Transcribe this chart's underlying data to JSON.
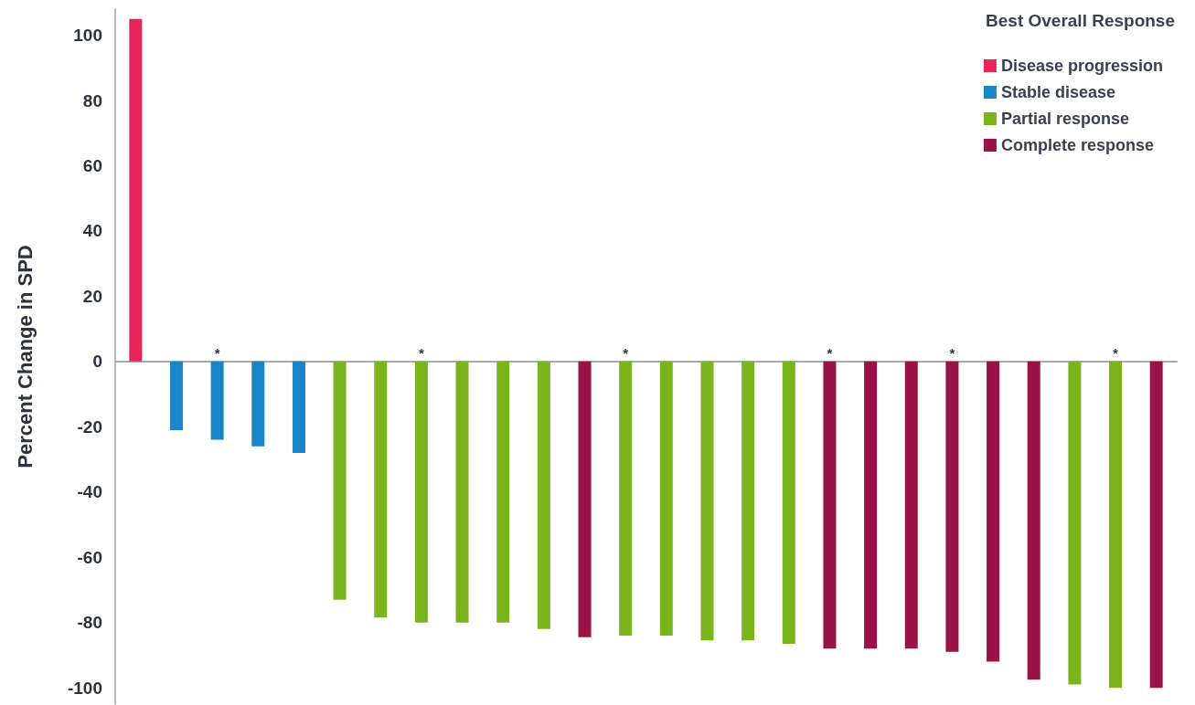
{
  "chart_data": {
    "type": "bar",
    "ylabel": "Percent Change in SPD",
    "legend_title": "Best Overall Response",
    "legend": "top right",
    "tick_labels": "y",
    "categories": [
      null,
      null,
      null,
      null,
      null,
      null,
      null,
      null,
      null,
      null,
      null,
      null,
      null,
      null,
      null,
      null,
      null,
      null,
      null,
      null,
      null,
      null,
      null,
      null,
      null,
      null
    ],
    "ylim": [
      -105,
      108
    ],
    "yticks": [
      -100,
      -80,
      -60,
      -40,
      -20,
      0,
      20,
      40,
      60,
      80,
      100
    ],
    "series": [
      {
        "name": "Disease progression",
        "color": "#e8245a",
        "values": [
          105,
          null,
          null,
          null,
          null,
          null,
          null,
          null,
          null,
          null,
          null,
          null,
          null,
          null,
          null,
          null,
          null,
          null,
          null,
          null,
          null,
          null,
          null,
          null,
          null,
          null
        ],
        "value_labels": [
          null,
          null,
          null,
          null,
          null,
          null,
          null,
          null,
          null,
          null,
          null,
          null,
          null,
          null,
          null,
          null,
          null,
          null,
          null,
          null,
          null,
          null,
          null,
          null,
          null,
          null
        ]
      },
      {
        "name": "Stable disease",
        "color": "#1a86c8",
        "values": [
          null,
          -21,
          -24,
          -26,
          -28,
          null,
          null,
          null,
          null,
          null,
          null,
          null,
          null,
          null,
          null,
          null,
          null,
          null,
          null,
          null,
          null,
          null,
          null,
          null,
          null,
          null
        ],
        "value_labels": [
          null,
          null,
          "*",
          null,
          null,
          null,
          null,
          null,
          null,
          null,
          null,
          null,
          null,
          null,
          null,
          null,
          null,
          null,
          null,
          null,
          null,
          null,
          null,
          null,
          null,
          null
        ]
      },
      {
        "name": "Partial response",
        "color": "#7ab51d",
        "values": [
          null,
          null,
          null,
          null,
          null,
          -73,
          -78.5,
          -80,
          -80,
          -80,
          -82,
          null,
          -84,
          -84,
          -85.5,
          -85.5,
          -86.5,
          null,
          null,
          null,
          null,
          null,
          null,
          -99,
          -100,
          null
        ],
        "value_labels": [
          null,
          null,
          null,
          null,
          null,
          null,
          null,
          "*",
          null,
          null,
          null,
          null,
          "*",
          null,
          null,
          null,
          null,
          null,
          null,
          null,
          null,
          null,
          null,
          null,
          "*",
          null
        ]
      },
      {
        "name": "Complete response",
        "color": "#9b1246",
        "values": [
          null,
          null,
          null,
          null,
          null,
          null,
          null,
          null,
          null,
          null,
          null,
          -84.5,
          null,
          null,
          null,
          null,
          null,
          -88,
          -88,
          -88,
          -89,
          -92,
          -97.5,
          null,
          null,
          -100
        ],
        "value_labels": [
          null,
          null,
          null,
          null,
          null,
          null,
          null,
          null,
          null,
          null,
          null,
          null,
          null,
          null,
          null,
          null,
          null,
          "*",
          null,
          null,
          "*",
          null,
          null,
          null,
          null,
          null
        ]
      }
    ]
  }
}
